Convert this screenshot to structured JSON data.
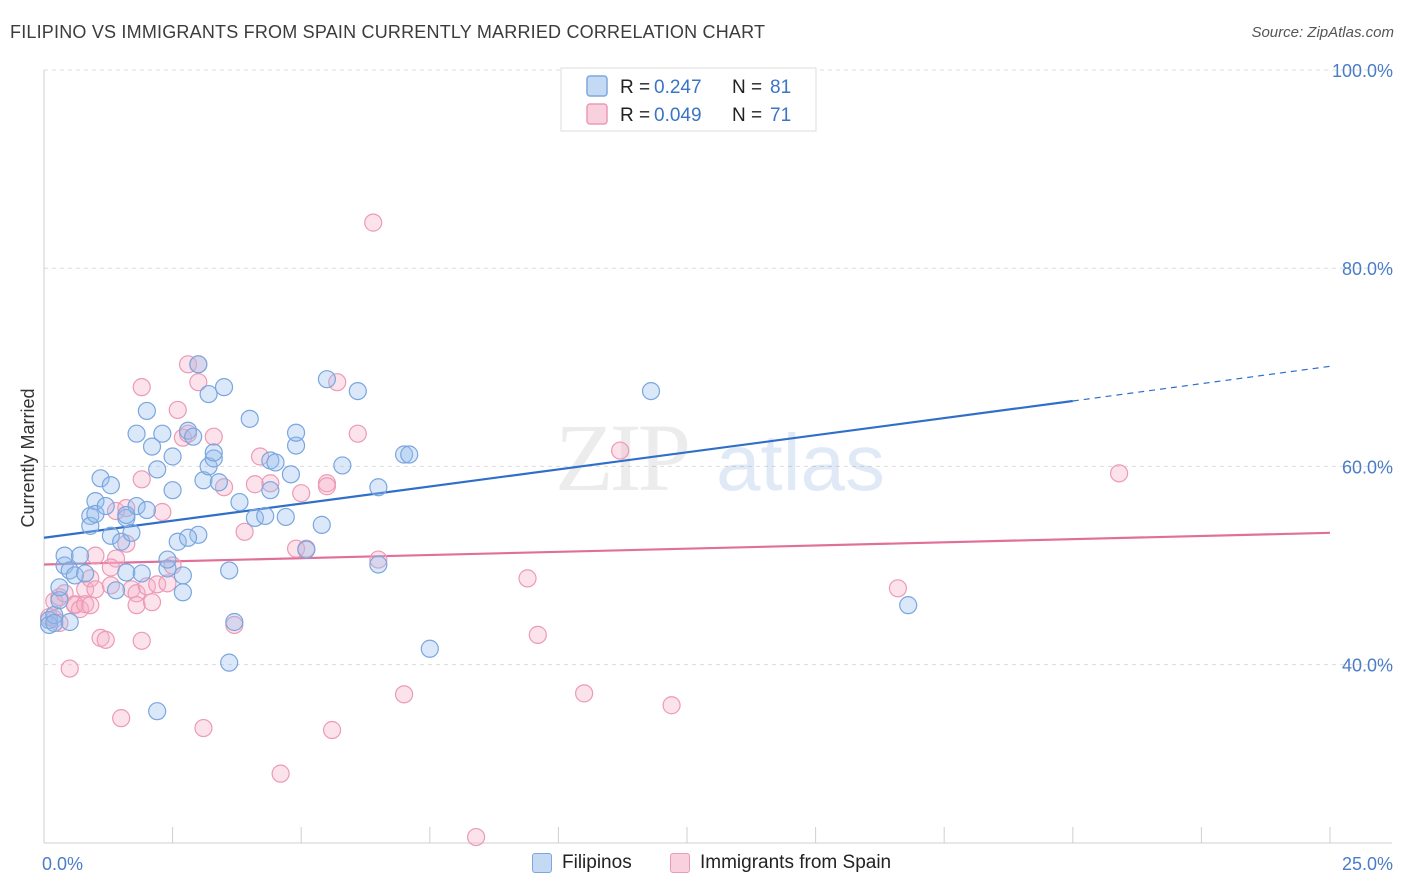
{
  "title": "FILIPINO VS IMMIGRANTS FROM SPAIN CURRENTLY MARRIED CORRELATION CHART",
  "source": "Source: ZipAtlas.com",
  "watermark": {
    "zip": "ZIP",
    "atlas": "atlas"
  },
  "chart_data": {
    "type": "scatter",
    "ylabel": "Currently Married",
    "xlim": [
      0,
      25
    ],
    "ylim": [
      22,
      100
    ],
    "x_tick_labels": [
      "0.0%",
      "25.0%"
    ],
    "y_ticks": [
      40,
      60,
      80,
      100
    ],
    "y_tick_labels": [
      "40.0%",
      "60.0%",
      "80.0%",
      "100.0%"
    ],
    "grid": "horizontal dashed",
    "legend_position": "top-center",
    "series": [
      {
        "name": "Filipinos",
        "color": "#8ab4e8",
        "line_color": "#2f6fca",
        "R_label": "R =",
        "R": "0.247",
        "N_label": "N =",
        "N": "81",
        "trend": {
          "x0": 0,
          "y0": 52.8,
          "x1": 20,
          "y1": 66.6,
          "x_dash_end": 25,
          "y_dash_end": 70.1
        },
        "points": [
          [
            0.1,
            44.5
          ],
          [
            0.1,
            44.0
          ],
          [
            0.2,
            45.0
          ],
          [
            0.2,
            44.2
          ],
          [
            0.3,
            46.5
          ],
          [
            0.3,
            47.8
          ],
          [
            0.4,
            50.0
          ],
          [
            0.4,
            51.0
          ],
          [
            0.5,
            49.5
          ],
          [
            0.6,
            49.0
          ],
          [
            0.7,
            51.0
          ],
          [
            0.8,
            49.2
          ],
          [
            0.9,
            55.0
          ],
          [
            0.9,
            54.0
          ],
          [
            1.0,
            56.5
          ],
          [
            1.0,
            55.2
          ],
          [
            1.1,
            58.8
          ],
          [
            1.2,
            56.0
          ],
          [
            1.3,
            53.0
          ],
          [
            1.3,
            58.1
          ],
          [
            1.4,
            47.5
          ],
          [
            1.5,
            52.4
          ],
          [
            1.6,
            54.8
          ],
          [
            1.6,
            49.3
          ],
          [
            1.7,
            53.3
          ],
          [
            1.8,
            63.3
          ],
          [
            1.8,
            56.0
          ],
          [
            1.9,
            49.2
          ],
          [
            2.0,
            55.6
          ],
          [
            2.0,
            65.6
          ],
          [
            2.1,
            62.0
          ],
          [
            2.2,
            59.7
          ],
          [
            2.2,
            35.3
          ],
          [
            2.3,
            63.3
          ],
          [
            2.4,
            49.7
          ],
          [
            2.4,
            50.6
          ],
          [
            2.5,
            61.0
          ],
          [
            2.5,
            57.6
          ],
          [
            2.6,
            52.4
          ],
          [
            2.7,
            49.0
          ],
          [
            2.7,
            47.3
          ],
          [
            2.8,
            63.6
          ],
          [
            2.9,
            63.0
          ],
          [
            3.0,
            53.1
          ],
          [
            3.0,
            70.3
          ],
          [
            3.1,
            58.6
          ],
          [
            3.2,
            60.0
          ],
          [
            3.2,
            67.3
          ],
          [
            3.3,
            60.8
          ],
          [
            3.3,
            61.4
          ],
          [
            3.4,
            58.4
          ],
          [
            3.5,
            68.0
          ],
          [
            3.6,
            49.5
          ],
          [
            3.6,
            40.2
          ],
          [
            3.7,
            44.3
          ],
          [
            3.8,
            56.4
          ],
          [
            4.0,
            64.8
          ],
          [
            4.1,
            54.8
          ],
          [
            4.3,
            55.0
          ],
          [
            4.4,
            57.6
          ],
          [
            4.4,
            60.6
          ],
          [
            4.5,
            60.4
          ],
          [
            4.7,
            54.9
          ],
          [
            4.8,
            59.2
          ],
          [
            4.9,
            62.1
          ],
          [
            4.9,
            63.4
          ],
          [
            5.1,
            51.6
          ],
          [
            5.4,
            54.1
          ],
          [
            5.5,
            68.8
          ],
          [
            5.8,
            60.1
          ],
          [
            6.1,
            67.6
          ],
          [
            6.5,
            57.9
          ],
          [
            6.5,
            50.1
          ],
          [
            7.0,
            61.2
          ],
          [
            7.1,
            61.2
          ],
          [
            7.5,
            41.6
          ],
          [
            11.8,
            67.6
          ],
          [
            16.8,
            46.0
          ],
          [
            0.5,
            44.3
          ],
          [
            1.6,
            55.1
          ],
          [
            2.8,
            52.8
          ]
        ]
      },
      {
        "name": "Immigrants from Spain",
        "color": "#f4a8c0",
        "line_color": "#e0709a",
        "R_label": "R =",
        "R": "0.049",
        "N_label": "N =",
        "N": "71",
        "trend": {
          "x0": 0,
          "y0": 50.1,
          "x1": 25,
          "y1": 53.3
        },
        "points": [
          [
            0.1,
            44.8
          ],
          [
            0.2,
            46.4
          ],
          [
            0.2,
            44.6
          ],
          [
            0.3,
            46.8
          ],
          [
            0.4,
            47.2
          ],
          [
            0.5,
            39.6
          ],
          [
            0.6,
            46.0
          ],
          [
            0.6,
            46.1
          ],
          [
            0.7,
            45.6
          ],
          [
            0.8,
            47.6
          ],
          [
            0.8,
            46.1
          ],
          [
            0.9,
            46.0
          ],
          [
            0.9,
            48.7
          ],
          [
            1.0,
            47.6
          ],
          [
            1.0,
            51.0
          ],
          [
            1.1,
            42.7
          ],
          [
            1.2,
            42.5
          ],
          [
            1.3,
            48.0
          ],
          [
            1.4,
            50.7
          ],
          [
            1.4,
            55.5
          ],
          [
            1.5,
            34.6
          ],
          [
            1.6,
            52.2
          ],
          [
            1.6,
            55.8
          ],
          [
            1.7,
            47.6
          ],
          [
            1.8,
            47.2
          ],
          [
            1.8,
            46.0
          ],
          [
            1.9,
            42.4
          ],
          [
            1.9,
            58.7
          ],
          [
            1.9,
            68.0
          ],
          [
            2.0,
            47.9
          ],
          [
            2.1,
            46.3
          ],
          [
            2.2,
            48.1
          ],
          [
            2.3,
            55.4
          ],
          [
            2.5,
            50.0
          ],
          [
            2.6,
            65.7
          ],
          [
            2.7,
            62.9
          ],
          [
            2.8,
            63.3
          ],
          [
            2.8,
            70.3
          ],
          [
            3.0,
            70.3
          ],
          [
            3.0,
            68.5
          ],
          [
            3.1,
            33.6
          ],
          [
            3.3,
            63.0
          ],
          [
            3.5,
            57.9
          ],
          [
            3.7,
            44.0
          ],
          [
            3.9,
            53.4
          ],
          [
            4.1,
            58.2
          ],
          [
            4.2,
            61.0
          ],
          [
            4.4,
            58.3
          ],
          [
            4.6,
            29.0
          ],
          [
            4.9,
            51.7
          ],
          [
            5.0,
            57.3
          ],
          [
            5.1,
            51.7
          ],
          [
            5.5,
            58.3
          ],
          [
            5.5,
            58.0
          ],
          [
            5.6,
            33.4
          ],
          [
            5.7,
            68.5
          ],
          [
            6.1,
            63.3
          ],
          [
            6.5,
            50.6
          ],
          [
            6.4,
            84.6
          ],
          [
            7.0,
            37.0
          ],
          [
            8.4,
            22.6
          ],
          [
            9.4,
            48.7
          ],
          [
            9.6,
            43.0
          ],
          [
            10.5,
            37.1
          ],
          [
            11.2,
            61.6
          ],
          [
            12.2,
            35.9
          ],
          [
            16.6,
            47.7
          ],
          [
            20.9,
            59.3
          ],
          [
            0.3,
            44.2
          ],
          [
            1.3,
            49.8
          ],
          [
            2.4,
            48.2
          ]
        ]
      }
    ]
  }
}
